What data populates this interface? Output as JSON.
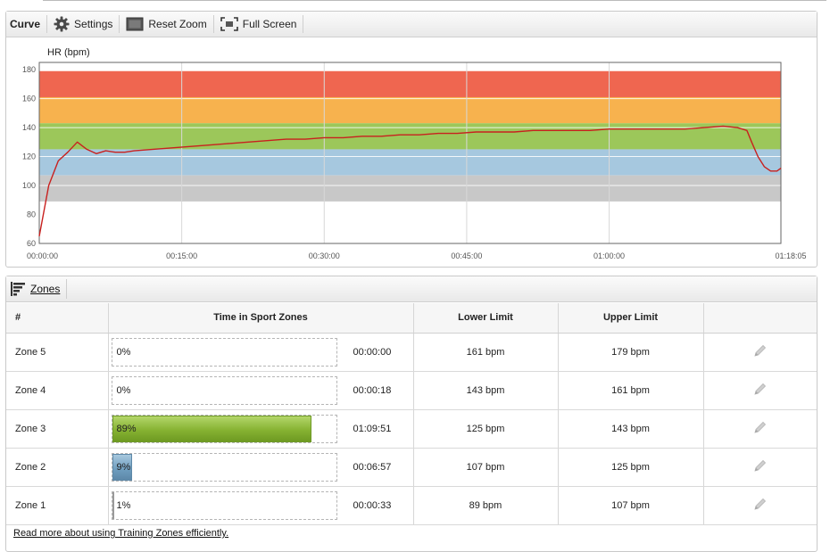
{
  "toolbar": {
    "title": "Curve",
    "settings_label": "Settings",
    "reset_zoom_label": "Reset Zoom",
    "full_screen_label": "Full Screen"
  },
  "chart_data": {
    "type": "line",
    "ylabel": "HR (bpm)",
    "ylim": [
      60,
      185
    ],
    "y_ticks": [
      60,
      80,
      100,
      120,
      140,
      160,
      180
    ],
    "x_ticks": [
      "00:00:00",
      "00:15:00",
      "00:30:00",
      "00:45:00",
      "01:00:00",
      "01:18:05"
    ],
    "x_tick_seconds": [
      0,
      900,
      1800,
      2700,
      3600,
      4685
    ],
    "xlim_seconds": [
      0,
      4685
    ],
    "zone_bands": [
      {
        "zone": "Zone 5",
        "lower": 161,
        "upper": 179,
        "color": "#ef6650"
      },
      {
        "zone": "Zone 4",
        "lower": 143,
        "upper": 161,
        "color": "#f7b24e"
      },
      {
        "zone": "Zone 3",
        "lower": 125,
        "upper": 143,
        "color": "#9cc75a"
      },
      {
        "zone": "Zone 2",
        "lower": 107,
        "upper": 125,
        "color": "#a6c8df"
      },
      {
        "zone": "Zone 1",
        "lower": 89,
        "upper": 107,
        "color": "#c8c8c8"
      }
    ],
    "line_color": "#c8201e",
    "series": [
      {
        "x": [
          0,
          60,
          120,
          180,
          240,
          300,
          360,
          420,
          480,
          540,
          600,
          720,
          840,
          960,
          1080,
          1200,
          1320,
          1440,
          1560,
          1680,
          1800,
          1920,
          2040,
          2160,
          2280,
          2400,
          2520,
          2640,
          2760,
          2880,
          3000,
          3120,
          3240,
          3360,
          3480,
          3600,
          3720,
          3840,
          3960,
          4080,
          4200,
          4320,
          4410,
          4470,
          4500,
          4540,
          4580,
          4620,
          4660,
          4685
        ],
        "values": [
          65,
          100,
          117,
          123,
          130,
          125,
          122,
          124,
          123,
          123,
          124,
          125,
          126,
          127,
          128,
          129,
          130,
          131,
          132,
          132,
          133,
          133,
          134,
          134,
          135,
          135,
          136,
          136,
          137,
          137,
          137,
          138,
          138,
          138,
          138,
          139,
          139,
          139,
          139,
          139,
          140,
          141,
          140,
          138,
          130,
          120,
          113,
          110,
          110,
          112
        ]
      }
    ]
  },
  "zones_tab": {
    "label": "Zones"
  },
  "table": {
    "headers": [
      "#",
      "Time in Sport Zones",
      "Lower Limit",
      "Upper Limit",
      ""
    ],
    "rows": [
      {
        "name": "Zone 5",
        "percent": "0%",
        "fraction": 0.0,
        "time": "00:00:00",
        "lower": "161 bpm",
        "upper": "179 bpm",
        "bar_color": "gray"
      },
      {
        "name": "Zone 4",
        "percent": "0%",
        "fraction": 0.0,
        "time": "00:00:18",
        "lower": "143 bpm",
        "upper": "161 bpm",
        "bar_color": "gray"
      },
      {
        "name": "Zone 3",
        "percent": "89%",
        "fraction": 0.89,
        "time": "01:09:51",
        "lower": "125 bpm",
        "upper": "143 bpm",
        "bar_color": "green"
      },
      {
        "name": "Zone 2",
        "percent": "9%",
        "fraction": 0.09,
        "time": "00:06:57",
        "lower": "107 bpm",
        "upper": "125 bpm",
        "bar_color": "blue"
      },
      {
        "name": "Zone 1",
        "percent": "1%",
        "fraction": 0.01,
        "time": "00:00:33",
        "lower": "89 bpm",
        "upper": "107 bpm",
        "bar_color": "gray"
      }
    ],
    "edit_icon": "pencil-icon"
  },
  "footer": {
    "link_text": "Read more about using Training Zones efficiently."
  }
}
